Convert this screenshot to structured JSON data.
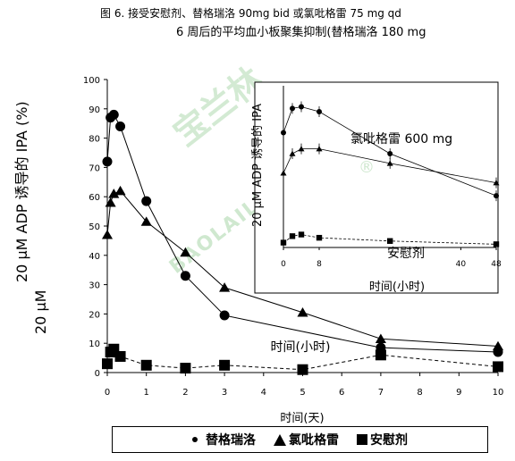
{
  "caption": {
    "line1": "图 6. 接受安慰剂、替格瑞洛 90mg bid 或氯吡格雷 75 mg qd",
    "line2": "6 周后的平均血小板聚集抑制(替格瑞洛 180 mg"
  },
  "watermark": {
    "main": "宝兰林",
    "sub": "BAOLAILIN",
    "mark": "®"
  },
  "chart_data": [
    {
      "type": "line",
      "xlabel": "时间(天)",
      "ylabel": "20 μM ADP 诱导的 IPA (%)",
      "ylabel2": "20 μM",
      "xlim": [
        0,
        10
      ],
      "ylim": [
        0,
        100
      ],
      "xticks": [
        0,
        1,
        2,
        3,
        4,
        5,
        6,
        7,
        8,
        9,
        10
      ],
      "yticks": [
        0,
        10,
        20,
        30,
        40,
        50,
        60,
        70,
        80,
        90,
        100
      ],
      "annotation": "时间(小时)",
      "series": [
        {
          "name": "替格瑞洛",
          "marker": "circle",
          "dash": false,
          "x": [
            0,
            0.083,
            0.167,
            0.333,
            1,
            2,
            3,
            7,
            10
          ],
          "y": [
            72,
            87,
            88,
            84,
            58.5,
            33,
            19.5,
            8.5,
            7
          ]
        },
        {
          "name": "氯吡格雷",
          "marker": "triangle",
          "dash": false,
          "x": [
            0,
            0.083,
            0.167,
            0.333,
            1,
            2,
            3,
            5,
            7,
            10
          ],
          "y": [
            47,
            58,
            61,
            62,
            51.5,
            41,
            29,
            20.5,
            11.5,
            9
          ]
        },
        {
          "name": "安慰剂",
          "marker": "square",
          "dash": true,
          "x": [
            0,
            0.083,
            0.167,
            0.333,
            1,
            2,
            3,
            5,
            7,
            10
          ],
          "y": [
            3,
            7,
            8,
            5.5,
            2.5,
            1.5,
            2.5,
            1,
            6,
            2
          ]
        }
      ]
    },
    {
      "type": "line",
      "inset": true,
      "xlabel": "时间(小时)",
      "ylabel": "20 μM ADP 诱导的 IPA",
      "xlim": [
        0,
        48
      ],
      "ylim": [
        0,
        100
      ],
      "xticks": [
        0,
        8,
        40,
        48
      ],
      "annotations": {
        "clopidogrel": "氯吡格雷 600 mg",
        "placebo": "安慰剂"
      },
      "series": [
        {
          "name": "替格瑞洛",
          "marker": "circle",
          "dash": false,
          "x": [
            0,
            2,
            4,
            8,
            24,
            48
          ],
          "y": [
            71,
            86,
            87,
            84,
            58,
            32
          ]
        },
        {
          "name": "氯吡格雷",
          "marker": "triangle",
          "dash": false,
          "x": [
            0,
            2,
            4,
            8,
            24,
            48
          ],
          "y": [
            46,
            58,
            61,
            61,
            52,
            40
          ]
        },
        {
          "name": "安慰剂",
          "marker": "square",
          "dash": true,
          "x": [
            0,
            2,
            4,
            8,
            24,
            48
          ],
          "y": [
            3,
            7,
            8,
            6,
            4,
            2
          ]
        }
      ]
    }
  ],
  "legend": [
    {
      "name": "替格瑞洛",
      "marker": "circle"
    },
    {
      "name": "氯吡格雷",
      "marker": "triangle"
    },
    {
      "name": "安慰剂",
      "marker": "square"
    }
  ]
}
